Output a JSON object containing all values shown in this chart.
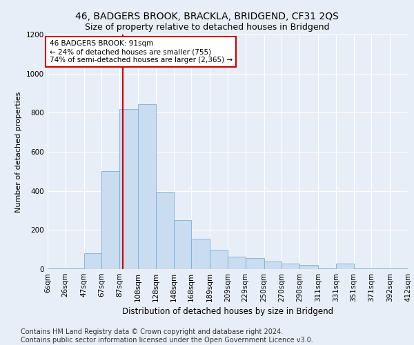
{
  "title": "46, BADGERS BROOK, BRACKLA, BRIDGEND, CF31 2QS",
  "subtitle": "Size of property relative to detached houses in Bridgend",
  "xlabel": "Distribution of detached houses by size in Bridgend",
  "ylabel": "Number of detached properties",
  "bins": [
    6,
    26,
    47,
    67,
    87,
    108,
    128,
    148,
    168,
    189,
    209,
    229,
    250,
    270,
    290,
    311,
    331,
    351,
    371,
    392,
    412
  ],
  "bin_labels": [
    "6sqm",
    "26sqm",
    "47sqm",
    "67sqm",
    "87sqm",
    "108sqm",
    "128sqm",
    "148sqm",
    "168sqm",
    "189sqm",
    "209sqm",
    "229sqm",
    "250sqm",
    "270sqm",
    "290sqm",
    "311sqm",
    "331sqm",
    "351sqm",
    "371sqm",
    "392sqm",
    "412sqm"
  ],
  "values": [
    5,
    5,
    80,
    500,
    820,
    845,
    395,
    250,
    155,
    100,
    65,
    55,
    40,
    30,
    20,
    5,
    30,
    5,
    5,
    5,
    0
  ],
  "bar_color": "#c9dcf0",
  "bar_edge_color": "#7bafd4",
  "vline_x": 91,
  "vline_color": "#cc0000",
  "annotation_text": "46 BADGERS BROOK: 91sqm\n← 24% of detached houses are smaller (755)\n74% of semi-detached houses are larger (2,365) →",
  "annotation_box_color": "#ffffff",
  "annotation_box_edge": "#cc0000",
  "ylim": [
    0,
    1200
  ],
  "yticks": [
    0,
    200,
    400,
    600,
    800,
    1000,
    1200
  ],
  "footer_text": "Contains HM Land Registry data © Crown copyright and database right 2024.\nContains public sector information licensed under the Open Government Licence v3.0.",
  "bg_color": "#e8eef7",
  "plot_bg_color": "#e8eef7",
  "title_fontsize": 10,
  "subtitle_fontsize": 9,
  "xlabel_fontsize": 8.5,
  "ylabel_fontsize": 8,
  "footer_fontsize": 7,
  "tick_fontsize": 7.5
}
